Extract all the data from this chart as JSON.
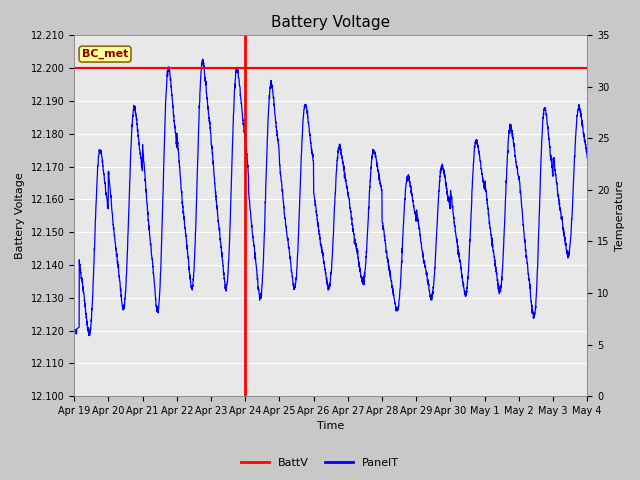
{
  "title": "Battery Voltage",
  "xlabel": "Time",
  "ylabel_left": "Battery Voltage",
  "ylabel_right": "Temperature",
  "ylim_left": [
    12.1,
    12.21
  ],
  "ylim_right": [
    0,
    35
  ],
  "yticks_left": [
    12.1,
    12.11,
    12.12,
    12.13,
    12.14,
    12.15,
    12.16,
    12.17,
    12.18,
    12.19,
    12.2,
    12.21
  ],
  "yticks_right": [
    0,
    5,
    10,
    15,
    20,
    25,
    30,
    35
  ],
  "hline_y": 12.2,
  "hline_color": "red",
  "vline_color": "red",
  "vline_day": 5,
  "fig_bg_color": "#c8c8c8",
  "plot_bg_color": "#e8e8e8",
  "annotation_text": "BC_met",
  "annotation_color": "#8b0000",
  "annotation_bg": "#ffff99",
  "annotation_edge": "#8b6914",
  "grid_color": "white",
  "line_color": "blue",
  "legend_battv_color": "red",
  "legend_panelt_color": "blue",
  "x_tick_labels": [
    "Apr 19",
    "Apr 20",
    "Apr 21",
    "Apr 22",
    "Apr 23",
    "Apr 24",
    "Apr 25",
    "Apr 26",
    "Apr 27",
    "Apr 28",
    "Apr 29",
    "Apr 30",
    "May 1",
    "May 2",
    "May 3",
    "May 4"
  ],
  "title_fontsize": 11,
  "label_fontsize": 8,
  "tick_fontsize": 7,
  "legend_fontsize": 8
}
